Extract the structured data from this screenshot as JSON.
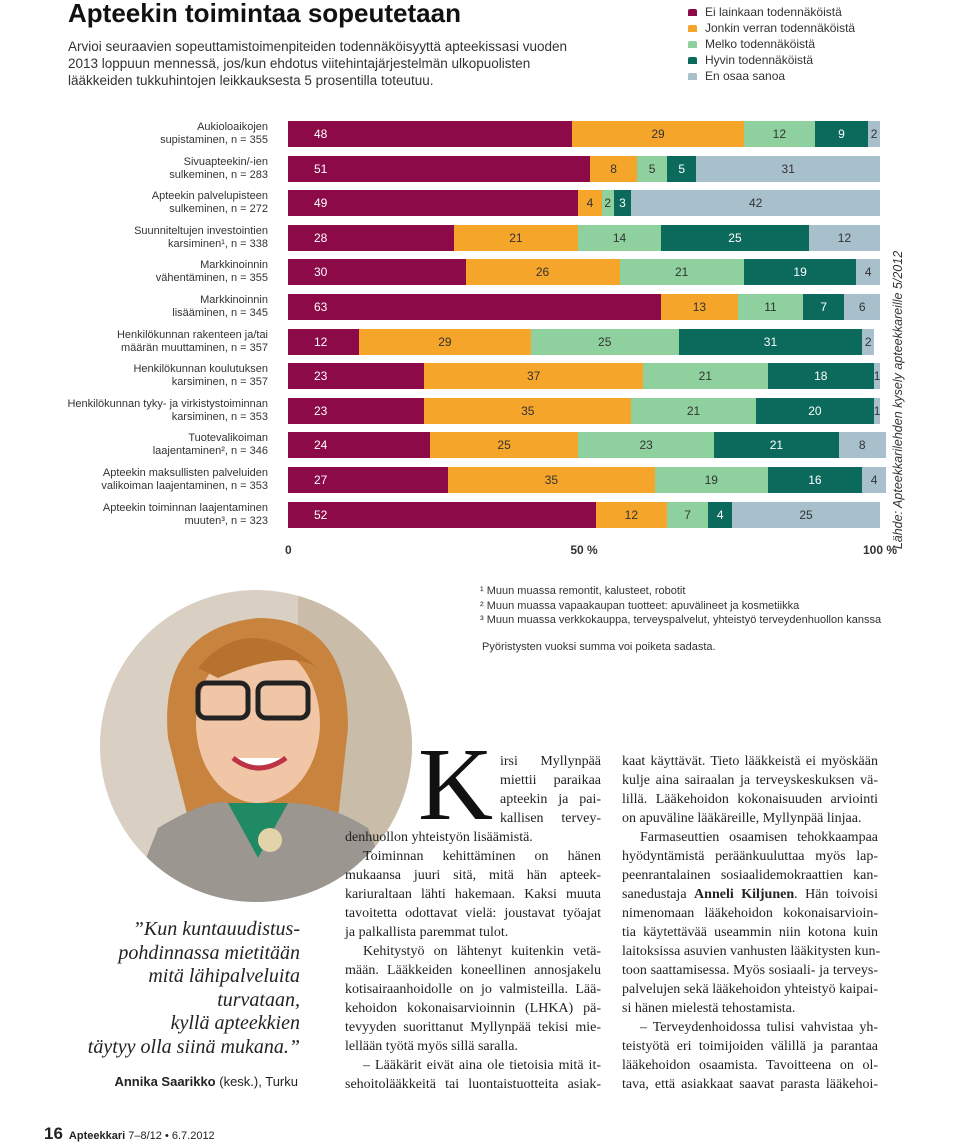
{
  "header": {
    "title": "Apteekin toimintaa sopeutetaan",
    "intro": [
      "Arvioi seuraavien sopeuttamistoimenpiteiden todennäköisyyttä apteekissasi vuoden",
      "2013 loppuun mennessä, jos/kun ehdotus viitehintajärjestelmän ulkopuolisten",
      "lääkkeiden tukkuhintojen leikkauksesta 5 prosentilla toteutuu."
    ]
  },
  "chart_data": {
    "type": "bar",
    "orientation": "horizontal",
    "stacked": true,
    "categories": [
      "Aukioloaikojen\nsupistaminen, n = 355",
      "Sivuapteekin/-ien\nsulkeminen, n = 283",
      "Apteekin palvelupisteen\nsulkeminen, n = 272",
      "Suunniteltujen investointien\nkarsiminen¹, n = 338",
      "Markkinoinnin\nvähentäminen, n = 355",
      "Markkinoinnin\nlisääminen, n = 345",
      "Henkilökunnan rakenteen ja/tai\nmäärän muuttaminen, n = 357",
      "Henkilökunnan koulutuksen\nkarsiminen, n = 357",
      "Henkilökunnan tyky- ja virkistystoiminnan\nkarsiminen, n = 353",
      "Tuotevalikoiman\nlaajentaminen², n = 346",
      "Apteekin maksullisten palveluiden\nvalikoiman laajentaminen, n = 353",
      "Apteekin toiminnan laajentaminen\nmuuten³, n = 323"
    ],
    "series": [
      {
        "name": "Ei lainkaan todennäköistä",
        "color": "#8c0a47",
        "values": [
          48,
          51,
          49,
          28,
          30,
          63,
          12,
          23,
          23,
          24,
          27,
          52
        ]
      },
      {
        "name": "Jonkin verran todennäköistä",
        "color": "#f6a52b",
        "values": [
          29,
          8,
          4,
          21,
          26,
          13,
          29,
          37,
          35,
          25,
          35,
          12
        ]
      },
      {
        "name": "Melko todennäköistä",
        "color": "#8fd19e",
        "values": [
          12,
          5,
          2,
          14,
          21,
          11,
          25,
          21,
          21,
          23,
          19,
          7
        ]
      },
      {
        "name": "Hyvin todennäköistä",
        "color": "#0c6a5c",
        "values": [
          9,
          5,
          3,
          25,
          19,
          7,
          31,
          18,
          20,
          21,
          16,
          4
        ]
      },
      {
        "name": "En osaa sanoa",
        "color": "#a8bfcc",
        "values": [
          2,
          31,
          42,
          12,
          4,
          6,
          2,
          1,
          1,
          8,
          4,
          25
        ]
      }
    ],
    "xlim": [
      0,
      100
    ],
    "xticks": [
      0,
      {
        "value": 50,
        "label": "50 %"
      },
      {
        "value": 100,
        "label": "100 %"
      }
    ],
    "source": "Lähde: Apteekkarilehden kysely apteekkareille 5/2012"
  },
  "footnotes": [
    "¹ Muun muassa remontit, kalusteet, robotit",
    "² Muun muassa vapaakaupan tuotteet: apuvälineet ja kosmetiikka",
    "³ Muun muassa verkkokauppa, terveyspalvelut, yhteistyö terveydenhuollon kanssa"
  ],
  "note": "Pyöristysten vuoksi summa voi poiketa sadasta.",
  "quote": {
    "lines": [
      "”Kun kuntauudistus-",
      "pohdinnassa mietitään",
      "mitä lähipalveluita",
      "turvataan,",
      "kyllä apteekkien",
      "täytyy olla siinä mukana.”"
    ],
    "author": "Annika Saarikko",
    "affiliation": "(kesk.), Turku"
  },
  "article": {
    "drop_cap": "K",
    "cap_lines": [
      "irsi Myllynpää",
      "miettii paraikaa",
      "apteekin ja pai-",
      "kallisen tervey-"
    ],
    "columns": [
      [
        [
          "denhuollon yhteistyön lisäämistä."
        ],
        [
          "Toiminnan kehittäminen on hänen",
          "mukaansa juuri sitä, mitä hän apteek-",
          "kariuraltaan lähti hakemaan. Kaksi muuta",
          "tavoitetta odottavat vielä: joustavat työajat",
          "ja palkallista paremmat tulot."
        ],
        [
          "Kehitystyö on lähtenyt kuitenkin vetä-",
          "mään. Lääkkeiden koneellinen annosjakelu",
          "kotisairaanhoidolle on jo valmisteilla. Lää-",
          "kehoidon kokonaisarvioinnin (LHKA) pä-",
          "tevyyden suorittanut Myllynpää tekisi mie-",
          "lellään työtä myös sillä saralla."
        ],
        [
          "– Lääkärit eivät aina ole tietoisia mitä it-",
          "sehoitolääkkeitä tai luontaistuotteita asiak-"
        ]
      ],
      [
        [
          "kaat käyttävät. Tieto lääkkeistä ei myöskään",
          "kulje aina sairaalan ja terveyskeskuksen vä-",
          "lillä. Lääkehoidon kokonaisuuden arviointi",
          "on apuväline lääkäreille, Myllynpää linjaa."
        ],
        [
          "Farmaseuttien osaamisen tehokkaampaa",
          "hyödyntämistä peräänkuuluttaa myös lap-",
          "peenrantalainen sosiaalidemokraattien kan-",
          {
            "text": "sanedustaja",
            "bold": "Anneli Kiljunen",
            "rest": ". Hän toivoisi"
          },
          "nimenomaan lääkehoidon kokonaisarvioin-",
          "tia käytettävää useammin niin kotona kuin",
          "laitoksissa asuvien vanhusten lääkitysten kun-",
          "toon saattamisessa. Myös sosiaali- ja terveys-",
          "palvelujen sekä lääkehoidon yhteistyö kaipai-",
          "si hänen mielestä tehostamista."
        ],
        [
          "– Terveydenhoidossa tulisi vahvistaa yh-",
          "teistyötä eri toimijoiden välillä ja parantaa",
          "lääkehoidon osaamista. Tavoitteena on ol-",
          "tava, että asiakkaat saavat parasta lääkehoi-"
        ]
      ]
    ]
  },
  "footer": {
    "page": "16",
    "magazine": "Apteekkari",
    "issue": "7–8/12 • 6.7.2012"
  }
}
